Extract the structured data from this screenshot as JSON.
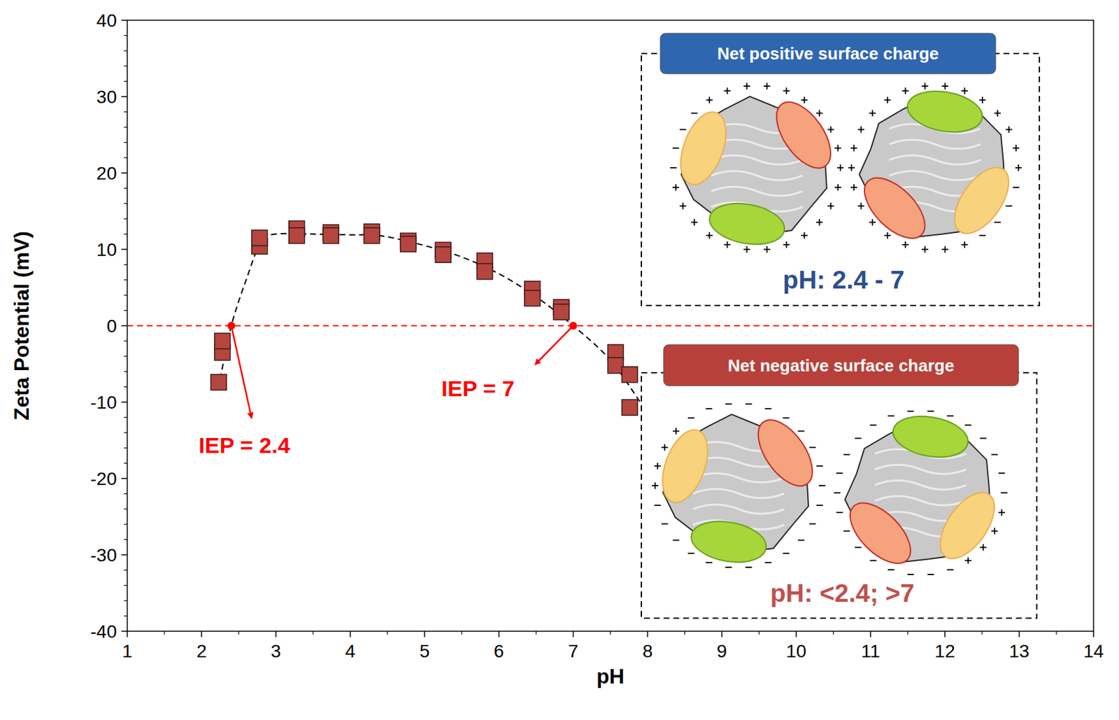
{
  "chart_data": {
    "type": "scatter",
    "x_label": "pH",
    "y_label": "Zeta Potential (mV)",
    "xlim": [
      1,
      14
    ],
    "xticks": [
      1,
      2,
      3,
      4,
      5,
      6,
      7,
      8,
      9,
      10,
      11,
      12,
      13,
      14
    ],
    "ylim": [
      -40,
      40
    ],
    "yticks": [
      -40,
      -30,
      -20,
      -10,
      0,
      10,
      20,
      30,
      40
    ],
    "grid": false,
    "points": {
      "color": "#b5453f",
      "marker": "square",
      "x": [
        2.23,
        2.28,
        2.28,
        2.78,
        2.78,
        3.28,
        3.28,
        3.74,
        3.74,
        4.29,
        4.29,
        4.78,
        4.78,
        5.25,
        5.25,
        5.81,
        5.81,
        6.45,
        6.45,
        6.84,
        6.84,
        7.57,
        7.57,
        7.76,
        7.76
      ],
      "values": [
        -7.4,
        -3.5,
        -2.0,
        10.4,
        11.5,
        12.7,
        11.8,
        12.2,
        11.8,
        12.3,
        11.8,
        11.1,
        10.7,
        9.9,
        9.3,
        8.5,
        7.1,
        4.8,
        3.6,
        2.4,
        1.8,
        -3.5,
        -5.2,
        -6.4,
        -10.7
      ]
    },
    "curve": {
      "type": "line",
      "color": "#000000",
      "line_style": "dashed",
      "x": [
        2.25,
        2.4,
        2.6,
        2.8,
        3.0,
        3.5,
        4.0,
        4.4,
        5.0,
        5.5,
        6.0,
        6.5,
        7.0,
        7.5,
        7.9
      ],
      "values": [
        -7.0,
        0.0,
        6.0,
        11.0,
        12.0,
        12.0,
        11.9,
        11.8,
        10.5,
        9.0,
        6.8,
        3.8,
        0.0,
        -4.5,
        -10.0
      ]
    },
    "hlines": [
      {
        "value": 0,
        "color": "#ff0000",
        "line_style": "dashed"
      }
    ],
    "annotations": [
      {
        "text": "IEP = 2.4",
        "x": 2.4,
        "y": 0,
        "color": "#ff0000"
      },
      {
        "text": "IEP = 7",
        "x": 7,
        "y": 0,
        "color": "#ff0000"
      }
    ],
    "insets": [
      {
        "title": "Net positive surface charge",
        "color": "#2f66b0",
        "range_label": "pH: 2.4 - 7",
        "range_color": "#2c4f8e"
      },
      {
        "title": "Net negative surface charge",
        "color": "#b8403a",
        "range_label": "pH: <2.4; >7",
        "range_color": "#c0504d"
      }
    ]
  }
}
